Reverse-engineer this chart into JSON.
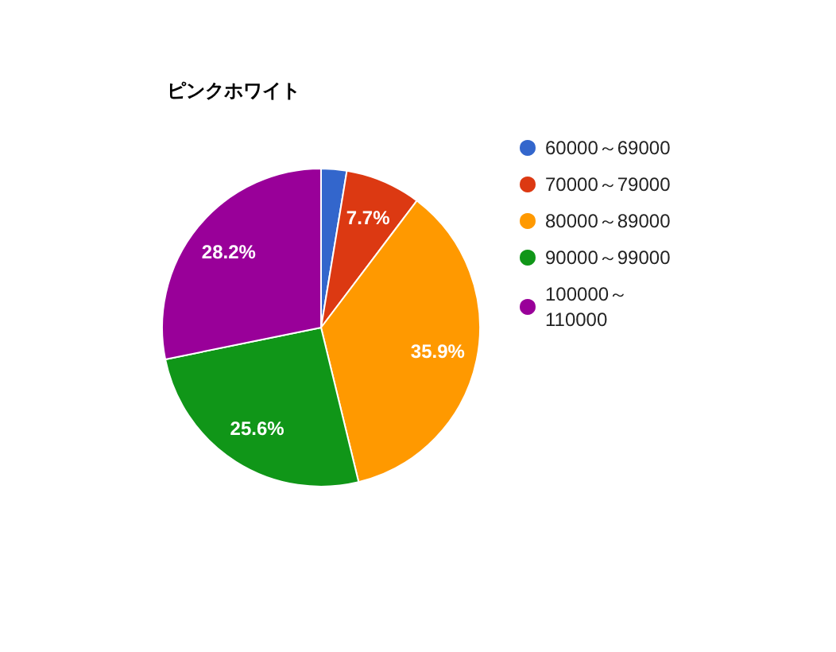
{
  "chart_data": {
    "type": "pie",
    "title": "ピンクホワイト",
    "categories": [
      "60000～69000",
      "70000～79000",
      "80000～89000",
      "90000～99000",
      "100000～110000"
    ],
    "values": [
      2.6,
      7.7,
      35.9,
      25.6,
      28.2
    ],
    "colors": [
      "#3366cc",
      "#dc3912",
      "#ff9900",
      "#109618",
      "#990099"
    ],
    "value_labels": [
      null,
      "7.7%",
      "35.9%",
      "25.6%",
      "28.2%"
    ],
    "legend": "right"
  }
}
